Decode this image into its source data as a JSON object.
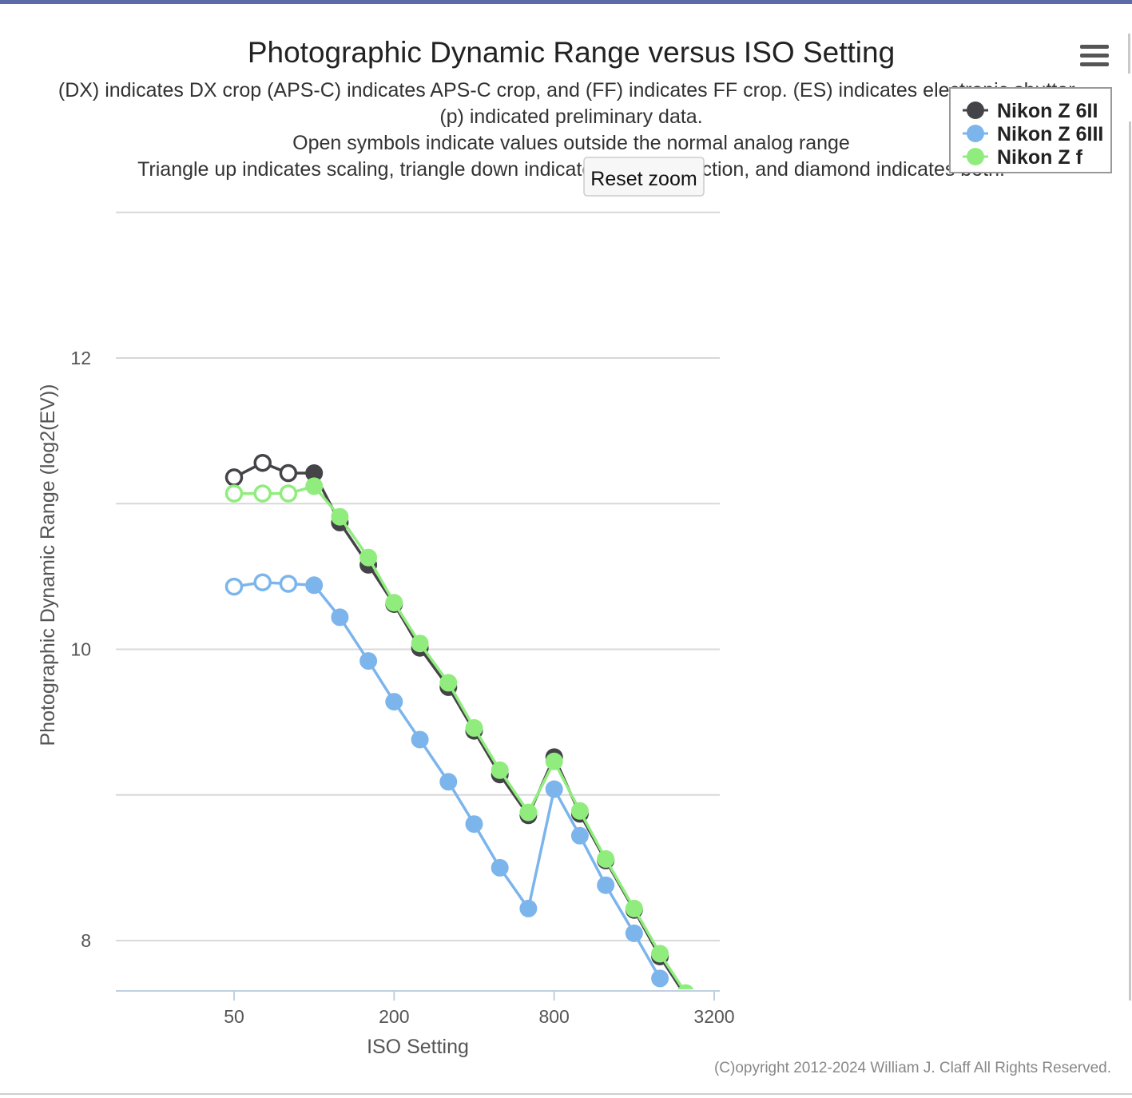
{
  "chart_data": {
    "type": "line",
    "title": "Photographic Dynamic Range versus ISO Setting",
    "subtitle_lines": [
      "(DX) indicates DX crop (APS-C) indicates APS-C crop, and (FF) indicates FF crop. (ES) indicates electronic shutter.",
      "(p) indicated preliminary data.",
      "Open symbols indicate values outside the normal analog range",
      "Triangle up indicates scaling, triangle down indicates noise reduction, and diamond indicates both."
    ],
    "xlabel": "ISO Setting",
    "ylabel": "Photographic Dynamic Range (log2(EV))",
    "x_scale": "log2",
    "x_ticks": [
      "50",
      "200",
      "800",
      "3200"
    ],
    "y_ticks": [
      "8",
      "10",
      "12"
    ],
    "ylim": [
      7.66,
      13.0
    ],
    "grid": "horizontal",
    "legend_position": "top-right",
    "reset_zoom_label": "Reset zoom",
    "credit": "(C)opyright 2012-2024 William J. Claff All Rights Reserved.",
    "series": [
      {
        "name": "Nikon Z 6II",
        "color": "#434348",
        "points": [
          {
            "iso": 50,
            "dr": 11.18,
            "open": true
          },
          {
            "iso": 64,
            "dr": 11.28,
            "open": true
          },
          {
            "iso": 80,
            "dr": 11.21,
            "open": true
          },
          {
            "iso": 100,
            "dr": 11.21,
            "open": false
          },
          {
            "iso": 125,
            "dr": 10.87,
            "open": false
          },
          {
            "iso": 160,
            "dr": 10.58,
            "open": false
          },
          {
            "iso": 200,
            "dr": 10.31,
            "open": false
          },
          {
            "iso": 250,
            "dr": 10.01,
            "open": false
          },
          {
            "iso": 320,
            "dr": 9.74,
            "open": false
          },
          {
            "iso": 400,
            "dr": 9.44,
            "open": false
          },
          {
            "iso": 500,
            "dr": 9.14,
            "open": false
          },
          {
            "iso": 640,
            "dr": 8.86,
            "open": false
          },
          {
            "iso": 800,
            "dr": 9.26,
            "open": false
          },
          {
            "iso": 1000,
            "dr": 8.87,
            "open": false
          },
          {
            "iso": 1250,
            "dr": 8.55,
            "open": false
          },
          {
            "iso": 1600,
            "dr": 8.21,
            "open": false
          },
          {
            "iso": 2000,
            "dr": 7.89,
            "open": false
          },
          {
            "iso": 2500,
            "dr": 7.62,
            "open": false
          }
        ]
      },
      {
        "name": "Nikon Z 6III",
        "color": "#7cb5ec",
        "points": [
          {
            "iso": 50,
            "dr": 10.43,
            "open": true
          },
          {
            "iso": 64,
            "dr": 10.46,
            "open": true
          },
          {
            "iso": 80,
            "dr": 10.45,
            "open": true
          },
          {
            "iso": 100,
            "dr": 10.44,
            "open": false
          },
          {
            "iso": 125,
            "dr": 10.22,
            "open": false
          },
          {
            "iso": 160,
            "dr": 9.92,
            "open": false
          },
          {
            "iso": 200,
            "dr": 9.64,
            "open": false
          },
          {
            "iso": 250,
            "dr": 9.38,
            "open": false
          },
          {
            "iso": 320,
            "dr": 9.09,
            "open": false
          },
          {
            "iso": 400,
            "dr": 8.8,
            "open": false
          },
          {
            "iso": 500,
            "dr": 8.5,
            "open": false
          },
          {
            "iso": 640,
            "dr": 8.22,
            "open": false
          },
          {
            "iso": 800,
            "dr": 9.04,
            "open": false
          },
          {
            "iso": 1000,
            "dr": 8.72,
            "open": false
          },
          {
            "iso": 1250,
            "dr": 8.38,
            "open": false
          },
          {
            "iso": 1600,
            "dr": 8.05,
            "open": false
          },
          {
            "iso": 2000,
            "dr": 7.74,
            "open": false
          }
        ]
      },
      {
        "name": "Nikon Z f",
        "color": "#90ed7d",
        "points": [
          {
            "iso": 50,
            "dr": 11.07,
            "open": true
          },
          {
            "iso": 64,
            "dr": 11.07,
            "open": true
          },
          {
            "iso": 80,
            "dr": 11.07,
            "open": true
          },
          {
            "iso": 100,
            "dr": 11.12,
            "open": false
          },
          {
            "iso": 125,
            "dr": 10.91,
            "open": false
          },
          {
            "iso": 160,
            "dr": 10.63,
            "open": false
          },
          {
            "iso": 200,
            "dr": 10.32,
            "open": false
          },
          {
            "iso": 250,
            "dr": 10.04,
            "open": false
          },
          {
            "iso": 320,
            "dr": 9.77,
            "open": false
          },
          {
            "iso": 400,
            "dr": 9.46,
            "open": false
          },
          {
            "iso": 500,
            "dr": 9.17,
            "open": false
          },
          {
            "iso": 640,
            "dr": 8.88,
            "open": false
          },
          {
            "iso": 800,
            "dr": 9.23,
            "open": false
          },
          {
            "iso": 1000,
            "dr": 8.89,
            "open": false
          },
          {
            "iso": 1250,
            "dr": 8.56,
            "open": false
          },
          {
            "iso": 1600,
            "dr": 8.22,
            "open": false
          },
          {
            "iso": 2000,
            "dr": 7.91,
            "open": false
          },
          {
            "iso": 2500,
            "dr": 7.64,
            "open": false
          }
        ]
      }
    ]
  }
}
